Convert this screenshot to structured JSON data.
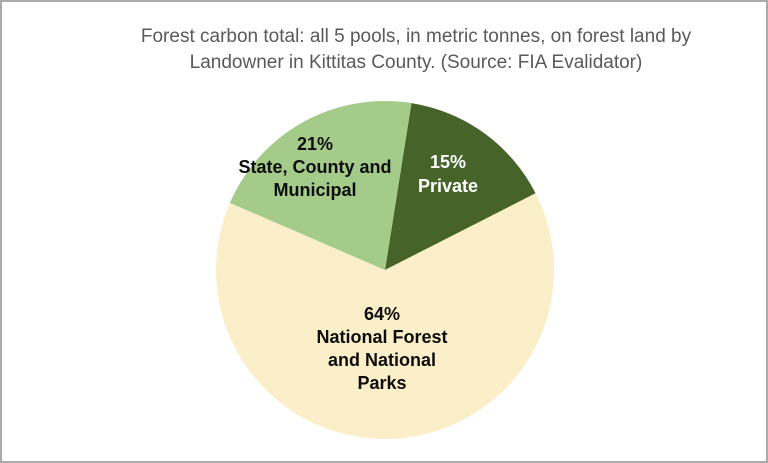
{
  "window": {
    "background": "#FFFFFF",
    "border_color": "#ABABAB"
  },
  "chart_data": {
    "type": "pie",
    "title": "Forest carbon total: all 5 pools, in metric tonnes, on forest land by\nLandowner in Kittitas County.  (Source: FIA Evalidator)",
    "title_color": "#595959",
    "categories": [
      "Private",
      "National Forest and National Parks",
      "State, County and Municipal"
    ],
    "values": [
      15,
      64,
      21
    ],
    "unit": "percent of total",
    "colors": [
      "#466329",
      "#FBEFC9",
      "#A4CB8A"
    ],
    "label_text_colors": [
      "#FFFFFF",
      "#0D0D0D",
      "#0D0D0D"
    ],
    "start_angle_deg": 9,
    "direction": "clockwise",
    "legend_position": "none",
    "data_labels": "inside slices: percent and category name"
  },
  "labels": {
    "private": {
      "text": "15%\nPrivate",
      "color": "#FFFFFF"
    },
    "national": {
      "text": "64%\nNational Forest\nand National\nParks",
      "color": "#0D0D0D"
    },
    "state": {
      "text": "21%\nState, County and\nMunicipal",
      "color": "#0D0D0D"
    }
  }
}
